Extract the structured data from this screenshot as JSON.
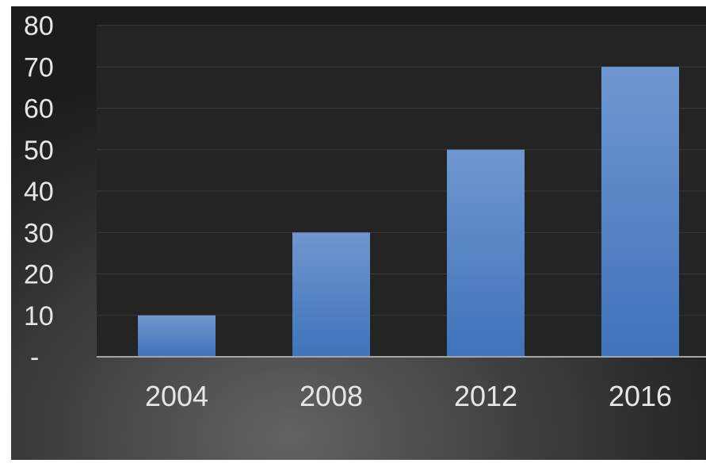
{
  "chart_data": {
    "type": "bar",
    "title": "",
    "xlabel": "",
    "ylabel": "",
    "categories": [
      "2004",
      "2008",
      "2012",
      "2016"
    ],
    "values": [
      10,
      30,
      50,
      70
    ],
    "ylim": [
      0,
      80
    ],
    "yticks": [
      0,
      10,
      20,
      30,
      40,
      50,
      60,
      70,
      80
    ],
    "ytick_labels": [
      "-",
      "10",
      "20",
      "30",
      "40",
      "50",
      "60",
      "70",
      "80"
    ],
    "grid": true,
    "legend": "none",
    "colors": {
      "bar_top": "#6f97cf",
      "bar_bottom": "#3f73bb",
      "plot_bg": "#242424",
      "grid": "#3a3a3a",
      "axis": "#a6a6a6",
      "text": "#e6e6e6"
    }
  }
}
